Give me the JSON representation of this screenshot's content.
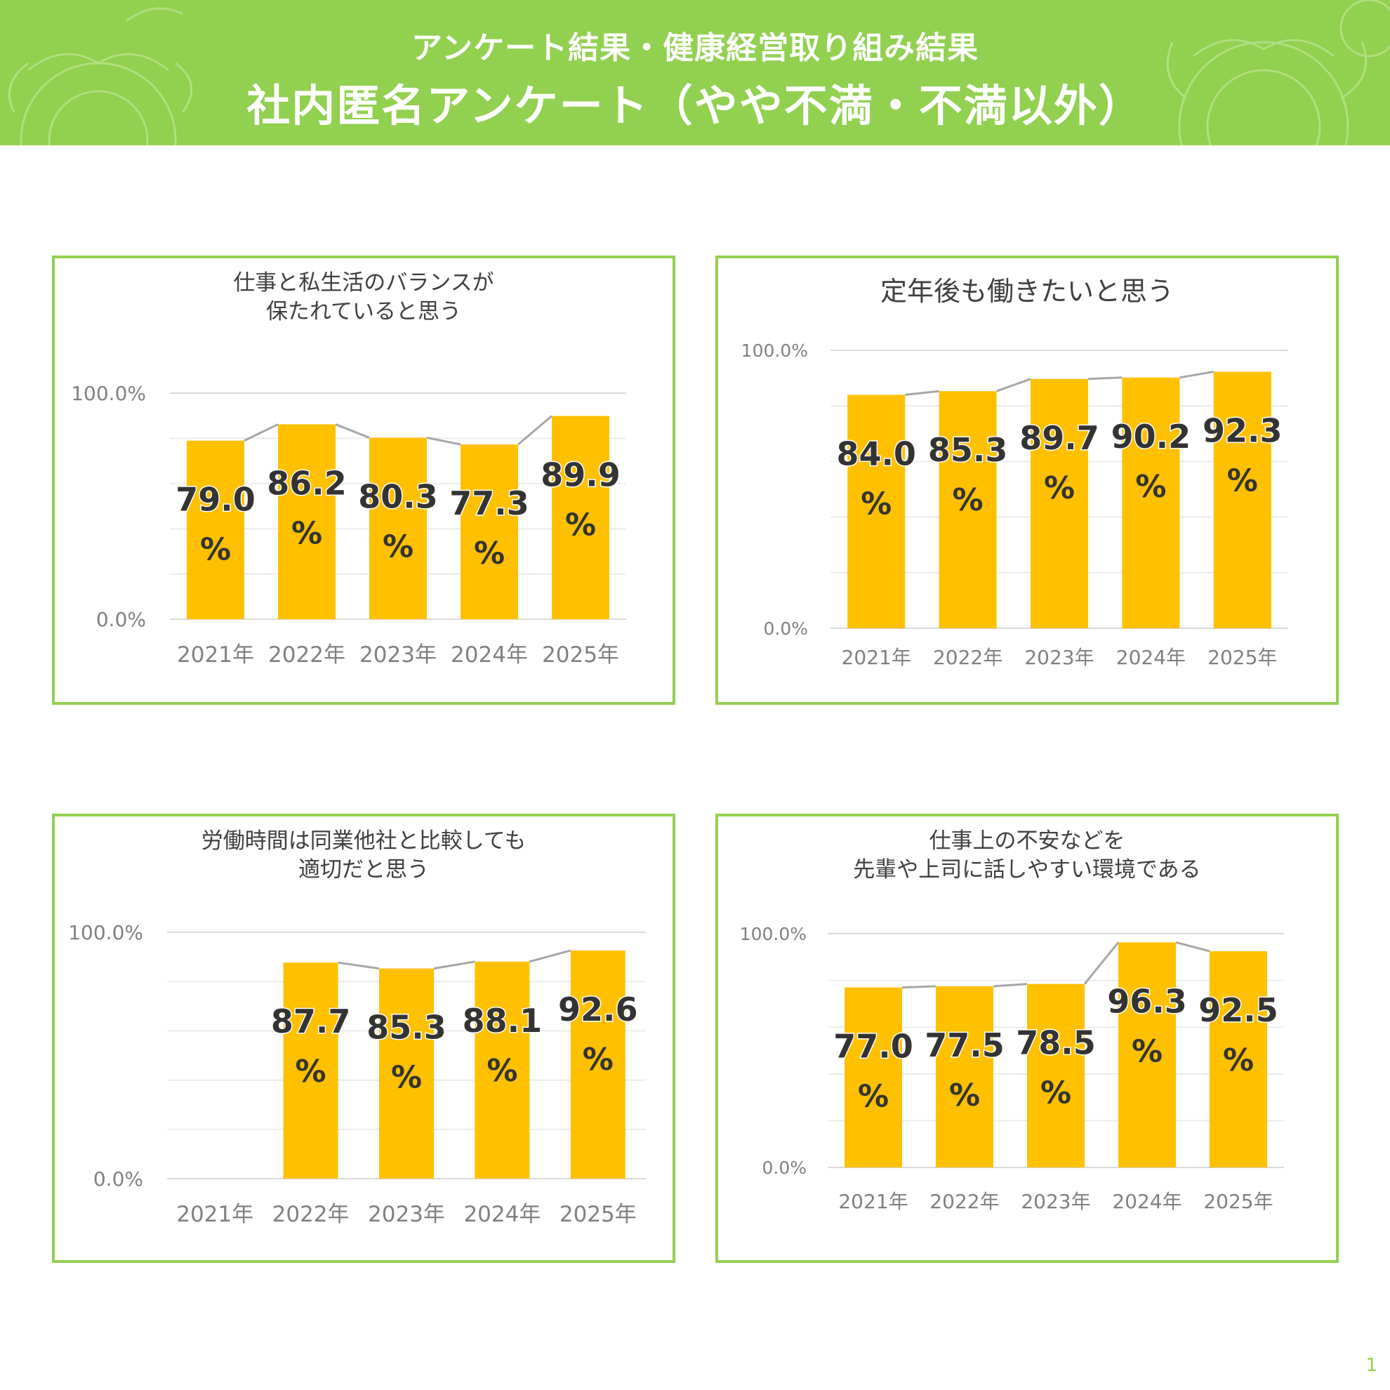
{
  "header": {
    "subtitle": "アンケート結果・健康経営取り組み結果",
    "title": "社内匿名アンケート（やや不満・不満以外）"
  },
  "page_number": "1",
  "colors": {
    "accent": "#92d050",
    "bar": "#ffc000",
    "line": "#a6a6a6",
    "axis_text": "#808080"
  },
  "chart_data": [
    {
      "type": "bar",
      "title_lines": [
        "仕事と私生活のバランスが",
        "保たれていると思う"
      ],
      "categories": [
        "2021年",
        "2022年",
        "2023年",
        "2024年",
        "2025年"
      ],
      "values": [
        79.0,
        86.2,
        80.3,
        77.3,
        89.9
      ],
      "labels": [
        "79.0",
        "86.2",
        "80.3",
        "77.3",
        "89.9"
      ],
      "y_ticks": [
        "0.0%",
        "100.0%"
      ],
      "ylim": [
        0,
        100
      ]
    },
    {
      "type": "bar",
      "title_lines": [
        "定年後も働きたいと思う"
      ],
      "categories": [
        "2021年",
        "2022年",
        "2023年",
        "2024年",
        "2025年"
      ],
      "values": [
        84.0,
        85.3,
        89.7,
        90.2,
        92.3
      ],
      "labels": [
        "84.0",
        "85.3",
        "89.7",
        "90.2",
        "92.3"
      ],
      "y_ticks": [
        "0.0%",
        "100.0%"
      ],
      "ylim": [
        0,
        100
      ]
    },
    {
      "type": "bar",
      "title_lines": [
        "労働時間は同業他社と比較しても",
        "適切だと思う"
      ],
      "categories": [
        "2021年",
        "2022年",
        "2023年",
        "2024年",
        "2025年"
      ],
      "values": [
        null,
        87.7,
        85.3,
        88.1,
        92.6
      ],
      "labels": [
        null,
        "87.7",
        "85.3",
        "88.1",
        "92.6"
      ],
      "y_ticks": [
        "0.0%",
        "100.0%"
      ],
      "ylim": [
        0,
        100
      ]
    },
    {
      "type": "bar",
      "title_lines": [
        "仕事上の不安などを",
        "先輩や上司に話しやすい環境である"
      ],
      "categories": [
        "2021年",
        "2022年",
        "2023年",
        "2024年",
        "2025年"
      ],
      "values": [
        77.0,
        77.5,
        78.5,
        96.3,
        92.5
      ],
      "labels": [
        "77.0",
        "77.5",
        "78.5",
        "96.3",
        "92.5"
      ],
      "y_ticks": [
        "0.0%",
        "100.0%"
      ],
      "ylim": [
        0,
        100
      ]
    }
  ],
  "percent_sign": "%"
}
